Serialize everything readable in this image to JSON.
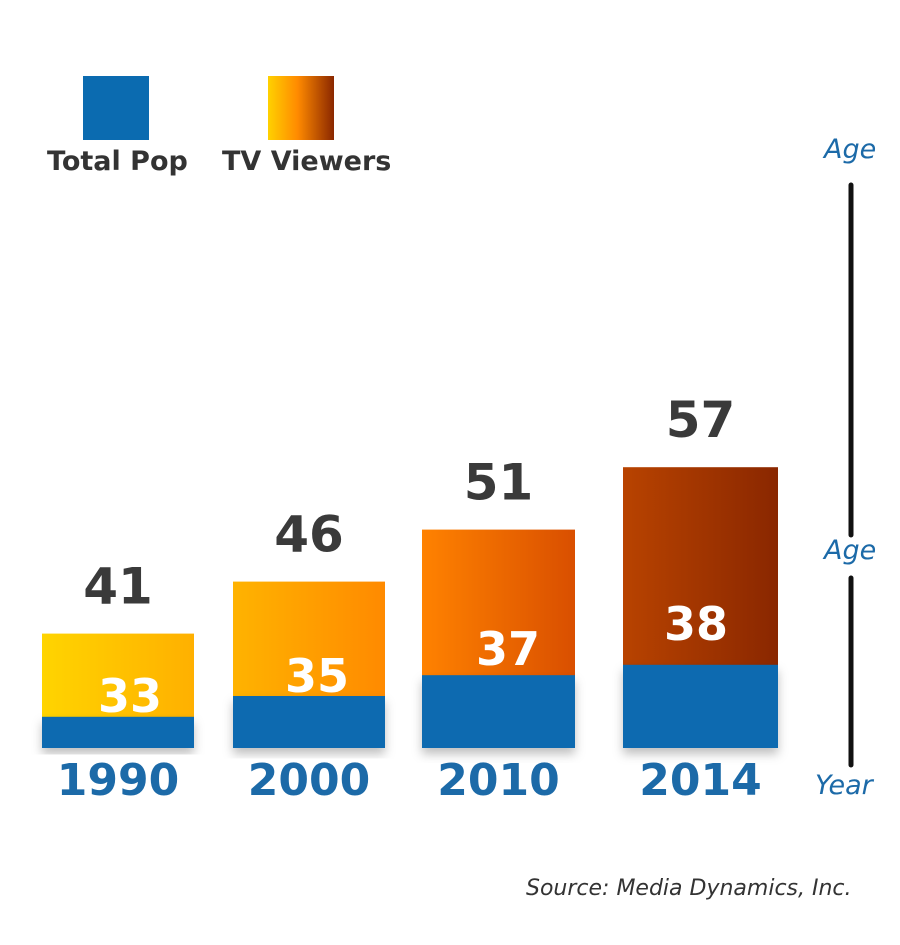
{
  "legend": [
    {
      "name": "Total Pop",
      "color": "#0b6bb0"
    },
    {
      "name": "TV Viewers",
      "gradient": [
        "#ffd100",
        "#8a2700"
      ]
    }
  ],
  "right_axis": {
    "top_label": "Age",
    "mid_label": "Age",
    "bottom_label": "Year"
  },
  "source": "Source: Media Dynamics, Inc.",
  "colors": {
    "total_pop": "#0b6bb0",
    "value_text": "#3a3a3a",
    "year_text": "#1c6aa8",
    "tv_1990": [
      "#ffd400",
      "#ffb000"
    ],
    "tv_2000": [
      "#ffb300",
      "#ff8a00"
    ],
    "tv_2010": [
      "#ff8200",
      "#d94f00"
    ],
    "tv_2014": [
      "#b84300",
      "#8a2700"
    ]
  },
  "chart_data": {
    "type": "bar",
    "categories": [
      "1990",
      "2000",
      "2010",
      "2014"
    ],
    "series": [
      {
        "name": "Total Pop",
        "values": [
          33,
          35,
          37,
          38
        ]
      },
      {
        "name": "TV Viewers",
        "values": [
          41,
          46,
          51,
          57
        ]
      }
    ],
    "ylabel": "Age",
    "xlabel": "Year",
    "grid": false,
    "legend_position": "top-left"
  }
}
